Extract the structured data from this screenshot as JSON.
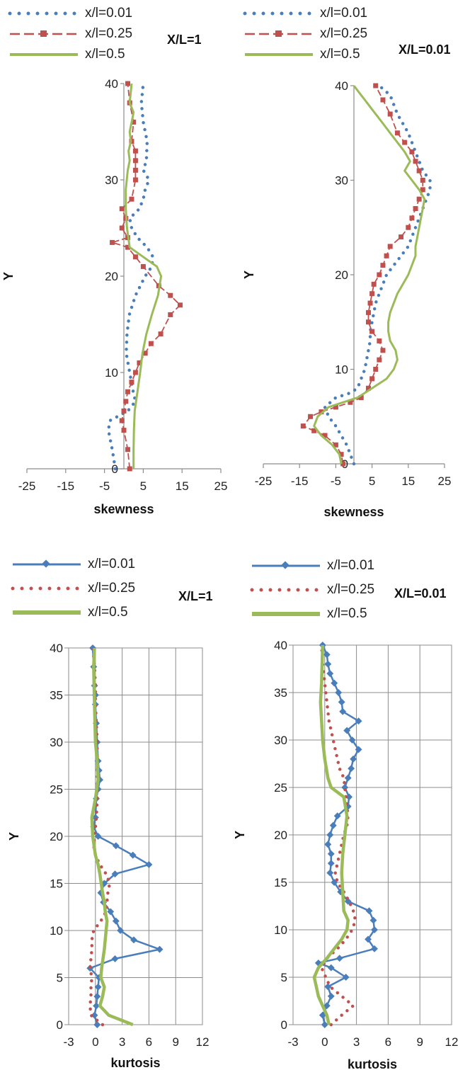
{
  "chart_data": [
    {
      "type": "line",
      "xlabel": "skewness",
      "ylabel": "Y",
      "tag": "X/L=1",
      "xticks": [
        "-25",
        "-15",
        "-5",
        "5",
        "15",
        "25"
      ],
      "yticks": [
        "0",
        "10",
        "20",
        "30",
        "40"
      ],
      "xlim": [
        -25,
        25
      ],
      "ylim": [
        0,
        40
      ],
      "grid": false,
      "legend_position": "top-left",
      "series": [
        {
          "name": "x/l=0.01",
          "color": "#4a7ebb",
          "style": "dotted",
          "x": [
            -2.2,
            -3,
            -4,
            -3.6,
            1,
            3,
            2.4,
            1.5,
            0.6,
            0.8,
            1.4,
            3,
            5.5,
            7.2,
            7.5,
            6,
            3.5,
            2,
            1.5,
            4,
            5,
            5.5,
            6.5,
            5,
            5.8,
            6,
            5,
            4.5,
            5
          ],
          "y": [
            0,
            2,
            4,
            5,
            6,
            7,
            8,
            10,
            12,
            14,
            16,
            18,
            20,
            21,
            22,
            23,
            24,
            25,
            26,
            27,
            28,
            29,
            30,
            31,
            32,
            34,
            36,
            38,
            40
          ]
        },
        {
          "name": "x/l=0.25",
          "color": "#c0504d",
          "style": "dash-square",
          "x": [
            1.5,
            1,
            0,
            -0.5,
            0,
            0.5,
            1,
            2,
            3,
            4,
            5.5,
            7,
            9.5,
            12,
            14.5,
            12,
            9,
            5,
            3,
            1,
            -3,
            1,
            -0.5,
            0.5,
            -0.5,
            2,
            3,
            3,
            3,
            3,
            2,
            2.5,
            1.5,
            1
          ],
          "y": [
            0,
            2,
            4,
            5,
            6,
            7,
            8,
            9,
            10,
            11,
            12,
            13,
            14,
            16,
            17,
            18,
            19,
            21,
            22,
            23,
            23.5,
            24,
            25,
            26,
            27,
            28,
            30,
            31,
            32,
            33,
            34,
            36,
            38,
            40
          ]
        },
        {
          "name": "x/l=0.5",
          "color": "#9bbb59",
          "style": "solid",
          "x": [
            2.5,
            2.5,
            2.6,
            2.8,
            3.5,
            4.2,
            4.8,
            5.8,
            7.2,
            8.8,
            9.6,
            8.5,
            5,
            1.5,
            0.8,
            0.5,
            0.5,
            1,
            1.5,
            1.2,
            1.8,
            1.5,
            2,
            2.5,
            1.5,
            2
          ],
          "y": [
            0,
            2,
            4,
            6,
            8,
            10,
            12,
            14,
            16,
            18,
            20,
            21,
            22,
            23,
            25,
            27,
            29,
            31,
            32,
            33,
            34,
            35,
            36,
            37,
            38,
            40
          ]
        }
      ]
    },
    {
      "type": "line",
      "xlabel": "skewness",
      "ylabel": "Y",
      "tag": "X/L=0.01",
      "xticks": [
        "-25",
        "-15",
        "-5",
        "5",
        "15",
        "25"
      ],
      "yticks": [
        "0",
        "10",
        "20",
        "30",
        "40"
      ],
      "xlim": [
        -25,
        25
      ],
      "ylim": [
        0,
        40
      ],
      "grid": false,
      "legend_position": "top-left",
      "series": [
        {
          "name": "x/l=0.01",
          "color": "#4a7ebb",
          "style": "dotted",
          "x": [
            0,
            -1,
            -2,
            -3.5,
            -5,
            -7,
            -8,
            -5,
            -1,
            1,
            2,
            3,
            3.5,
            4,
            4.5,
            4.5,
            5,
            5.5,
            6,
            7,
            8,
            9,
            11,
            13,
            15,
            16,
            17,
            18,
            19,
            20,
            21,
            21,
            19,
            18,
            17,
            16,
            15,
            12,
            10,
            7
          ],
          "y": [
            0,
            1,
            2,
            3,
            4,
            5,
            6,
            7,
            7.5,
            8,
            9,
            10,
            11,
            12,
            13,
            14,
            15,
            16,
            17,
            18,
            19,
            20,
            21,
            22,
            23,
            24,
            25,
            26,
            27,
            28,
            29,
            30,
            31,
            32,
            33,
            34,
            35,
            37,
            39,
            40
          ]
        },
        {
          "name": "x/l=0.25",
          "color": "#c0504d",
          "style": "dash-square",
          "x": [
            -3,
            -3.5,
            -5,
            -8,
            -11,
            -14,
            -12,
            -9,
            -5,
            -1,
            2,
            4,
            5,
            6,
            7,
            8,
            7,
            5,
            4,
            4,
            4.5,
            5,
            5.5,
            7,
            8,
            9,
            10,
            13,
            15,
            16,
            17,
            18,
            19,
            19,
            18,
            17,
            16,
            14,
            12,
            10,
            8,
            6
          ],
          "y": [
            0,
            1,
            2,
            3,
            3.5,
            4,
            5,
            5.5,
            6,
            6.5,
            7,
            8,
            9,
            10,
            11,
            12,
            13,
            14,
            15,
            16,
            17,
            18,
            19,
            20,
            21,
            22,
            23,
            24,
            25,
            26,
            27,
            28,
            29,
            30,
            31,
            32,
            33,
            34,
            35,
            37,
            38.5,
            40
          ]
        },
        {
          "name": "x/l=0.5",
          "color": "#9bbb59",
          "style": "solid",
          "x": [
            -3.5,
            -4,
            -6,
            -9,
            -11,
            -10,
            -7,
            -3,
            1,
            5,
            9,
            11,
            12,
            11.5,
            10,
            9.5,
            9.5,
            10,
            12,
            15,
            16,
            17,
            17,
            17.5,
            18.5,
            19.5,
            18,
            16,
            14,
            15.5,
            14,
            12,
            10,
            8,
            6,
            5,
            4,
            3,
            2,
            0
          ],
          "y": [
            0,
            1,
            2,
            3,
            4,
            5,
            6,
            6.5,
            7,
            8,
            9,
            10,
            11,
            12,
            13,
            14,
            15,
            16,
            18,
            20,
            21,
            22,
            23,
            24,
            26,
            28,
            29,
            30,
            31,
            32,
            33,
            34,
            35,
            36,
            37,
            37.5,
            38,
            38.5,
            39,
            40
          ]
        }
      ]
    },
    {
      "type": "line",
      "xlabel": "kurtosis",
      "ylabel": "Y",
      "tag": "X/L=1",
      "xticks": [
        "-3",
        "0",
        "3",
        "6",
        "9",
        "12"
      ],
      "yticks": [
        "0",
        "5",
        "10",
        "15",
        "20",
        "25",
        "30",
        "35",
        "40"
      ],
      "xlim": [
        -3,
        12
      ],
      "ylim": [
        0,
        40
      ],
      "grid": true,
      "legend_position": "top-left",
      "series": [
        {
          "name": "x/l=0.01",
          "color": "#4a7ebb",
          "style": "line-diamond",
          "x": [
            0.2,
            -0.1,
            0.1,
            0.2,
            0.3,
            0.4,
            -0.6,
            2.2,
            7.2,
            4.3,
            2.8,
            2.3,
            1.7,
            0.9,
            0.6,
            1,
            2.2,
            6,
            4.2,
            2.3,
            0.3,
            -0.2,
            0,
            0.1,
            0.3,
            0.5,
            0.4,
            0.3,
            0.2,
            0.1,
            0,
            0,
            -0.1,
            -0.2,
            -0.3
          ],
          "y": [
            0,
            1,
            2,
            3,
            4,
            5,
            6,
            7,
            8,
            9,
            10,
            11,
            12,
            13,
            14,
            15,
            16,
            17,
            18,
            19,
            20,
            21,
            22,
            24,
            25,
            26,
            27,
            28,
            30,
            32,
            34,
            35,
            36,
            38,
            40
          ]
        },
        {
          "name": "x/l=0.25",
          "color": "#c0504d",
          "style": "dotted",
          "x": [
            0.8,
            -0.5,
            -0.6,
            -0.5,
            -0.5,
            -0.4,
            -0.6,
            -0.5,
            -0.4,
            -0.4,
            -0.2,
            0.6,
            1.2,
            1.4,
            1.6,
            1.2,
            0.5,
            0,
            -0.2,
            -0.1,
            0.1,
            0.2,
            0.2,
            0.2,
            0.2,
            0.1,
            0,
            0,
            -0.1,
            -0.2,
            -0.2
          ],
          "y": [
            0,
            1,
            2,
            3,
            4,
            5,
            6,
            7,
            8,
            9,
            10,
            11,
            12,
            14,
            15,
            16,
            17,
            18,
            19,
            20,
            22,
            24,
            26,
            28,
            30,
            32,
            34,
            36,
            38,
            39,
            40
          ]
        },
        {
          "name": "x/l=0.5",
          "color": "#9bbb59",
          "style": "solid",
          "x": [
            4.2,
            1.5,
            0.5,
            0.8,
            1,
            0.6,
            0.7,
            1,
            1.2,
            1.3,
            1.1,
            1,
            0.8,
            0.5,
            0.3,
            0,
            -0.3,
            -0.4,
            0,
            0.3,
            0.2,
            0,
            -0.1,
            -0.2,
            -0.1
          ],
          "y": [
            0,
            1,
            2,
            3,
            4,
            5,
            6,
            8,
            10,
            11,
            12,
            13,
            14,
            16,
            17,
            18,
            20,
            22,
            24,
            26,
            28,
            30,
            34,
            38,
            40
          ]
        }
      ]
    },
    {
      "type": "line",
      "xlabel": "kurtosis",
      "ylabel": "Y",
      "tag": "X/L=0.01",
      "xticks": [
        "-3",
        "0",
        "3",
        "6",
        "9",
        "12"
      ],
      "yticks": [
        "0",
        "5",
        "10",
        "15",
        "20",
        "25",
        "30",
        "35",
        "40"
      ],
      "xlim": [
        -3,
        12
      ],
      "ylim": [
        0,
        40
      ],
      "grid": true,
      "legend_position": "top-left",
      "series": [
        {
          "name": "x/l=0.01",
          "color": "#4a7ebb",
          "style": "line-diamond",
          "x": [
            0,
            -0.2,
            0.2,
            0.6,
            0.3,
            2,
            0.6,
            -0.6,
            1.4,
            4.7,
            4.1,
            4.7,
            4.6,
            4.2,
            2.2,
            1.5,
            0.9,
            0.5,
            0.6,
            0.6,
            0.3,
            0.5,
            0.8,
            1.2,
            2.2,
            2.3,
            1.9,
            2.2,
            2.5,
            2.7,
            3.2,
            2.6,
            2.1,
            3.2,
            1.7,
            1.6,
            1.3,
            0.9,
            0.5,
            0.3,
            0.2,
            -0.2
          ],
          "y": [
            0,
            1,
            2,
            3,
            4,
            5,
            6,
            6.5,
            7,
            8,
            9,
            10,
            11,
            12,
            13,
            14,
            15,
            16,
            17,
            18,
            19,
            20,
            21,
            22,
            23,
            24,
            25,
            26,
            27,
            28,
            29,
            30,
            31,
            32,
            33,
            34,
            35,
            36,
            37,
            38,
            39,
            40
          ]
        },
        {
          "name": "x/l=0.25",
          "color": "#c0504d",
          "style": "dotted",
          "x": [
            0.6,
            1.6,
            2.7,
            1.6,
            0.5,
            -0.3,
            0.2,
            1.2,
            2,
            2.6,
            2.9,
            2.7,
            2.3,
            1.8,
            1.2,
            1,
            1.2,
            1.4,
            1.6,
            1.8,
            2.1,
            2.2,
            2,
            1.8,
            1.4,
            1.2,
            1,
            0.8,
            0.6,
            0.4,
            0.2,
            0,
            -0.2,
            -0.3
          ],
          "y": [
            0,
            1,
            2,
            3,
            4,
            6,
            7,
            8,
            9,
            10,
            11,
            12,
            13,
            14,
            15,
            16,
            17,
            18,
            19,
            20,
            21,
            22,
            24,
            26,
            27,
            28,
            29,
            30,
            31,
            32,
            34,
            36,
            38,
            40
          ]
        },
        {
          "name": "x/l=0.5",
          "color": "#9bbb59",
          "style": "solid",
          "x": [
            0.4,
            0.2,
            -0.2,
            -0.6,
            -0.8,
            -1,
            -0.6,
            0.2,
            0.9,
            1.6,
            2.1,
            2.2,
            1.8,
            1.7,
            1.6,
            1.7,
            1.9,
            2.1,
            1.8,
            0.6,
            0.3,
            0,
            -0.2,
            -0.3,
            -0.4,
            -0.3,
            -0.2
          ],
          "y": [
            0,
            1,
            2,
            3,
            4,
            5,
            6,
            7,
            8,
            9,
            10,
            11,
            12,
            14,
            16,
            18,
            20,
            22,
            24,
            25,
            26,
            28,
            30,
            32,
            34,
            36,
            40
          ]
        }
      ]
    }
  ]
}
